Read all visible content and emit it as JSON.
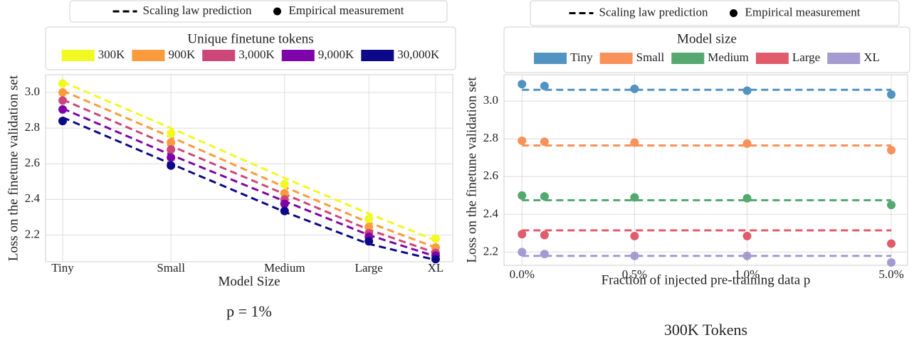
{
  "chart_data": [
    {
      "type": "line",
      "title": "p = 1%",
      "xlabel": "Model Size",
      "ylabel": "Loss on the finetune validation set",
      "style_legend": [
        "Scaling law prediction",
        "Empirical measurement"
      ],
      "legend_title": "Unique finetune tokens",
      "categories": [
        "Tiny",
        "Small",
        "Medium",
        "Large",
        "XL"
      ],
      "series": [
        {
          "name": "300K",
          "color": "#f0f921",
          "values": [
            3.05,
            2.77,
            2.485,
            2.29,
            2.18
          ],
          "prediction": [
            3.06,
            2.8,
            2.52,
            2.32,
            2.17
          ]
        },
        {
          "name": "900K",
          "color": "#fb9b3e",
          "values": [
            3.0,
            2.72,
            2.435,
            2.245,
            2.13
          ],
          "prediction": [
            3.01,
            2.75,
            2.47,
            2.27,
            2.13
          ]
        },
        {
          "name": "3,000K",
          "color": "#cc4778",
          "values": [
            2.955,
            2.68,
            2.4,
            2.21,
            2.1
          ],
          "prediction": [
            2.96,
            2.7,
            2.43,
            2.23,
            2.1
          ]
        },
        {
          "name": "9,000K",
          "color": "#7e03a8",
          "values": [
            2.905,
            2.635,
            2.375,
            2.19,
            2.085
          ],
          "prediction": [
            2.91,
            2.65,
            2.39,
            2.2,
            2.08
          ]
        },
        {
          "name": "30,000K",
          "color": "#0d0887",
          "values": [
            2.84,
            2.59,
            2.335,
            2.165,
            2.065
          ],
          "prediction": [
            2.86,
            2.6,
            2.33,
            2.15,
            2.06
          ]
        }
      ],
      "ylim": [
        2.05,
        3.1
      ],
      "yticks": [
        2.2,
        2.4,
        2.6,
        2.8,
        {
          "value": 3,
          "label": "3.0"
        }
      ],
      "grid": true
    },
    {
      "type": "line",
      "title": "300K Tokens",
      "xlabel": "Fraction of injected pre-training data p",
      "ylabel": "Loss on the finetune validation set",
      "style_legend": [
        "Scaling law prediction",
        "Empirical measurement"
      ],
      "legend_title": "Model size",
      "x": [
        0,
        0.1,
        0.5,
        1,
        5
      ],
      "xscale": "symlog",
      "xlim": [
        -0.08,
        6
      ],
      "xticks": [
        {
          "value": 0,
          "label": "0.0%"
        },
        {
          "value": 0.5,
          "label": "0.5%"
        },
        {
          "value": 1,
          "label": "1.0%"
        },
        {
          "value": 5,
          "label": "5.0%"
        }
      ],
      "series": [
        {
          "name": "Tiny",
          "color": "#5293c1",
          "values": [
            3.09,
            3.08,
            3.065,
            3.055,
            3.035
          ],
          "prediction": [
            3.06,
            3.06,
            3.06,
            3.06,
            3.06
          ]
        },
        {
          "name": "Small",
          "color": "#f9925a",
          "values": [
            2.79,
            2.785,
            2.78,
            2.775,
            2.74
          ],
          "prediction": [
            2.765,
            2.765,
            2.765,
            2.765,
            2.765
          ]
        },
        {
          "name": "Medium",
          "color": "#55a870",
          "values": [
            2.5,
            2.495,
            2.49,
            2.485,
            2.45
          ],
          "prediction": [
            2.475,
            2.475,
            2.475,
            2.475,
            2.475
          ]
        },
        {
          "name": "Large",
          "color": "#e05c6b",
          "values": [
            2.295,
            2.29,
            2.285,
            2.285,
            2.245
          ],
          "prediction": [
            2.315,
            2.315,
            2.315,
            2.315,
            2.315
          ]
        },
        {
          "name": "XL",
          "color": "#a69bd0",
          "values": [
            2.2,
            2.19,
            2.18,
            2.18,
            2.145
          ],
          "prediction": [
            2.18,
            2.18,
            2.18,
            2.18,
            2.18
          ]
        }
      ],
      "ylim": [
        2.13,
        3.14
      ],
      "yticks": [
        2.2,
        2.4,
        2.6,
        2.8,
        {
          "value": 3,
          "label": "3.0"
        }
      ],
      "grid": true
    }
  ]
}
